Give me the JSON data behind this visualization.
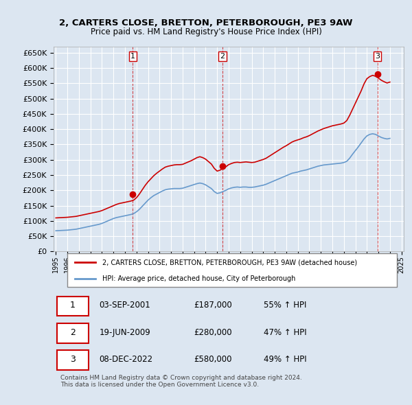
{
  "title_line1": "2, CARTERS CLOSE, BRETTON, PETERBOROUGH, PE3 9AW",
  "title_line2": "Price paid vs. HM Land Registry's House Price Index (HPI)",
  "sale_dates": [
    "2001-09-03",
    "2009-06-19",
    "2022-12-08"
  ],
  "sale_prices": [
    187000,
    280000,
    580000
  ],
  "sale_labels": [
    "1",
    "2",
    "3"
  ],
  "sale_color": "#cc0000",
  "hpi_color": "#6699cc",
  "background_color": "#dce6f1",
  "plot_bg_color": "#dce6f1",
  "grid_color": "#ffffff",
  "ylim": [
    0,
    670000
  ],
  "yticks": [
    0,
    50000,
    100000,
    150000,
    200000,
    250000,
    300000,
    350000,
    400000,
    450000,
    500000,
    550000,
    600000,
    650000
  ],
  "legend_label_red": "2, CARTERS CLOSE, BRETTON, PETERBOROUGH, PE3 9AW (detached house)",
  "legend_label_blue": "HPI: Average price, detached house, City of Peterborough",
  "table_rows": [
    [
      "1",
      "03-SEP-2001",
      "£187,000",
      "55% ↑ HPI"
    ],
    [
      "2",
      "19-JUN-2009",
      "£280,000",
      "47% ↑ HPI"
    ],
    [
      "3",
      "08-DEC-2022",
      "£580,000",
      "49% ↑ HPI"
    ]
  ],
  "footer_text": "Contains HM Land Registry data © Crown copyright and database right 2024.\nThis data is licensed under the Open Government Licence v3.0.",
  "hpi_data": {
    "years": [
      1995.0,
      1995.25,
      1995.5,
      1995.75,
      1996.0,
      1996.25,
      1996.5,
      1996.75,
      1997.0,
      1997.25,
      1997.5,
      1997.75,
      1998.0,
      1998.25,
      1998.5,
      1998.75,
      1999.0,
      1999.25,
      1999.5,
      1999.75,
      2000.0,
      2000.25,
      2000.5,
      2000.75,
      2001.0,
      2001.25,
      2001.5,
      2001.75,
      2002.0,
      2002.25,
      2002.5,
      2002.75,
      2003.0,
      2003.25,
      2003.5,
      2003.75,
      2004.0,
      2004.25,
      2004.5,
      2004.75,
      2005.0,
      2005.25,
      2005.5,
      2005.75,
      2006.0,
      2006.25,
      2006.5,
      2006.75,
      2007.0,
      2007.25,
      2007.5,
      2007.75,
      2008.0,
      2008.25,
      2008.5,
      2008.75,
      2009.0,
      2009.25,
      2009.5,
      2009.75,
      2010.0,
      2010.25,
      2010.5,
      2010.75,
      2011.0,
      2011.25,
      2011.5,
      2011.75,
      2012.0,
      2012.25,
      2012.5,
      2012.75,
      2013.0,
      2013.25,
      2013.5,
      2013.75,
      2014.0,
      2014.25,
      2014.5,
      2014.75,
      2015.0,
      2015.25,
      2015.5,
      2015.75,
      2016.0,
      2016.25,
      2016.5,
      2016.75,
      2017.0,
      2017.25,
      2017.5,
      2017.75,
      2018.0,
      2018.25,
      2018.5,
      2018.75,
      2019.0,
      2019.25,
      2019.5,
      2019.75,
      2020.0,
      2020.25,
      2020.5,
      2020.75,
      2021.0,
      2021.25,
      2021.5,
      2021.75,
      2022.0,
      2022.25,
      2022.5,
      2022.75,
      2023.0,
      2023.25,
      2023.5,
      2023.75,
      2024.0
    ],
    "values": [
      68000,
      68500,
      69000,
      69500,
      70000,
      71000,
      72000,
      73000,
      75000,
      77000,
      79000,
      81000,
      83000,
      85000,
      87000,
      89000,
      92000,
      96000,
      100000,
      104000,
      108000,
      111000,
      113000,
      115000,
      117000,
      119000,
      121000,
      124000,
      130000,
      138000,
      148000,
      158000,
      168000,
      176000,
      183000,
      188000,
      193000,
      198000,
      202000,
      204000,
      205000,
      206000,
      206000,
      206000,
      207000,
      210000,
      213000,
      216000,
      219000,
      222000,
      224000,
      222000,
      218000,
      212000,
      206000,
      196000,
      190000,
      192000,
      196000,
      200000,
      205000,
      208000,
      210000,
      211000,
      210000,
      211000,
      211000,
      210000,
      210000,
      211000,
      213000,
      215000,
      217000,
      220000,
      224000,
      228000,
      232000,
      236000,
      240000,
      244000,
      248000,
      252000,
      256000,
      258000,
      260000,
      263000,
      265000,
      267000,
      270000,
      273000,
      276000,
      279000,
      281000,
      283000,
      284000,
      285000,
      286000,
      287000,
      288000,
      289000,
      291000,
      295000,
      305000,
      318000,
      330000,
      342000,
      355000,
      368000,
      378000,
      383000,
      385000,
      383000,
      378000,
      373000,
      370000,
      368000,
      370000
    ]
  },
  "red_data": {
    "years": [
      1995.0,
      1995.25,
      1995.5,
      1995.75,
      1996.0,
      1996.25,
      1996.5,
      1996.75,
      1997.0,
      1997.25,
      1997.5,
      1997.75,
      1998.0,
      1998.25,
      1998.5,
      1998.75,
      1999.0,
      1999.25,
      1999.5,
      1999.75,
      2000.0,
      2000.25,
      2000.5,
      2000.75,
      2001.0,
      2001.25,
      2001.5,
      2001.75,
      2002.0,
      2002.25,
      2002.5,
      2002.75,
      2003.0,
      2003.25,
      2003.5,
      2003.75,
      2004.0,
      2004.25,
      2004.5,
      2004.75,
      2005.0,
      2005.25,
      2005.5,
      2005.75,
      2006.0,
      2006.25,
      2006.5,
      2006.75,
      2007.0,
      2007.25,
      2007.5,
      2007.75,
      2008.0,
      2008.25,
      2008.5,
      2008.75,
      2009.0,
      2009.25,
      2009.5,
      2009.75,
      2010.0,
      2010.25,
      2010.5,
      2010.75,
      2011.0,
      2011.25,
      2011.5,
      2011.75,
      2012.0,
      2012.25,
      2012.5,
      2012.75,
      2013.0,
      2013.25,
      2013.5,
      2013.75,
      2014.0,
      2014.25,
      2014.5,
      2014.75,
      2015.0,
      2015.25,
      2015.5,
      2015.75,
      2016.0,
      2016.25,
      2016.5,
      2016.75,
      2017.0,
      2017.25,
      2017.5,
      2017.75,
      2018.0,
      2018.25,
      2018.5,
      2018.75,
      2019.0,
      2019.25,
      2019.5,
      2019.75,
      2020.0,
      2020.25,
      2020.5,
      2020.75,
      2021.0,
      2021.25,
      2021.5,
      2021.75,
      2022.0,
      2022.25,
      2022.5,
      2022.75,
      2023.0,
      2023.25,
      2023.5,
      2023.75,
      2024.0
    ],
    "values": [
      110000,
      110500,
      111000,
      111500,
      112000,
      113000,
      114000,
      115000,
      117000,
      119000,
      121000,
      123000,
      125000,
      127000,
      129000,
      131000,
      134000,
      138000,
      142000,
      146000,
      150000,
      154000,
      157000,
      159000,
      161000,
      163000,
      165000,
      168000,
      176000,
      188000,
      202000,
      216000,
      228000,
      238000,
      248000,
      256000,
      263000,
      270000,
      276000,
      279000,
      281000,
      283000,
      284000,
      284000,
      285000,
      289000,
      293000,
      297000,
      302000,
      307000,
      310000,
      307000,
      302000,
      294000,
      286000,
      272000,
      263000,
      266000,
      272000,
      277000,
      284000,
      288000,
      291000,
      292000,
      291000,
      292000,
      293000,
      292000,
      291000,
      292000,
      295000,
      298000,
      301000,
      305000,
      311000,
      317000,
      323000,
      329000,
      335000,
      341000,
      346000,
      352000,
      358000,
      362000,
      365000,
      368000,
      372000,
      375000,
      379000,
      384000,
      389000,
      394000,
      398000,
      402000,
      405000,
      408000,
      411000,
      413000,
      415000,
      417000,
      420000,
      428000,
      445000,
      465000,
      485000,
      505000,
      525000,
      548000,
      565000,
      572000,
      576000,
      573000,
      567000,
      560000,
      555000,
      551000,
      554000
    ]
  }
}
